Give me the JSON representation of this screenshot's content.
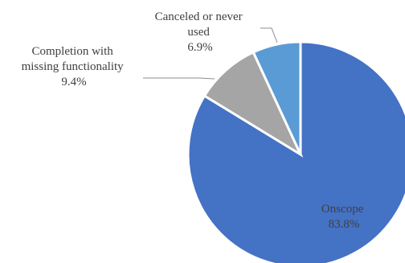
{
  "chart_data": {
    "type": "pie",
    "title": "",
    "slices": [
      {
        "name": "Onscope",
        "label_lines": [
          "Onscope"
        ],
        "value": 83.8,
        "value_label": "83.8%",
        "color": "#4472c4"
      },
      {
        "name": "Completion with missing functionality",
        "label_lines": [
          "Completion with",
          "missing functionality"
        ],
        "value": 9.4,
        "value_label": "9.4%",
        "color": "#a5a5a5"
      },
      {
        "name": "Canceled or never used",
        "label_lines": [
          "Canceled or never",
          "used"
        ],
        "value": 6.9,
        "value_label": "6.9%",
        "color": "#5b9bd5"
      }
    ],
    "start_angle_deg": 0,
    "direction": "clockwise",
    "legend": "none",
    "data_labels": "category name and percentage"
  }
}
